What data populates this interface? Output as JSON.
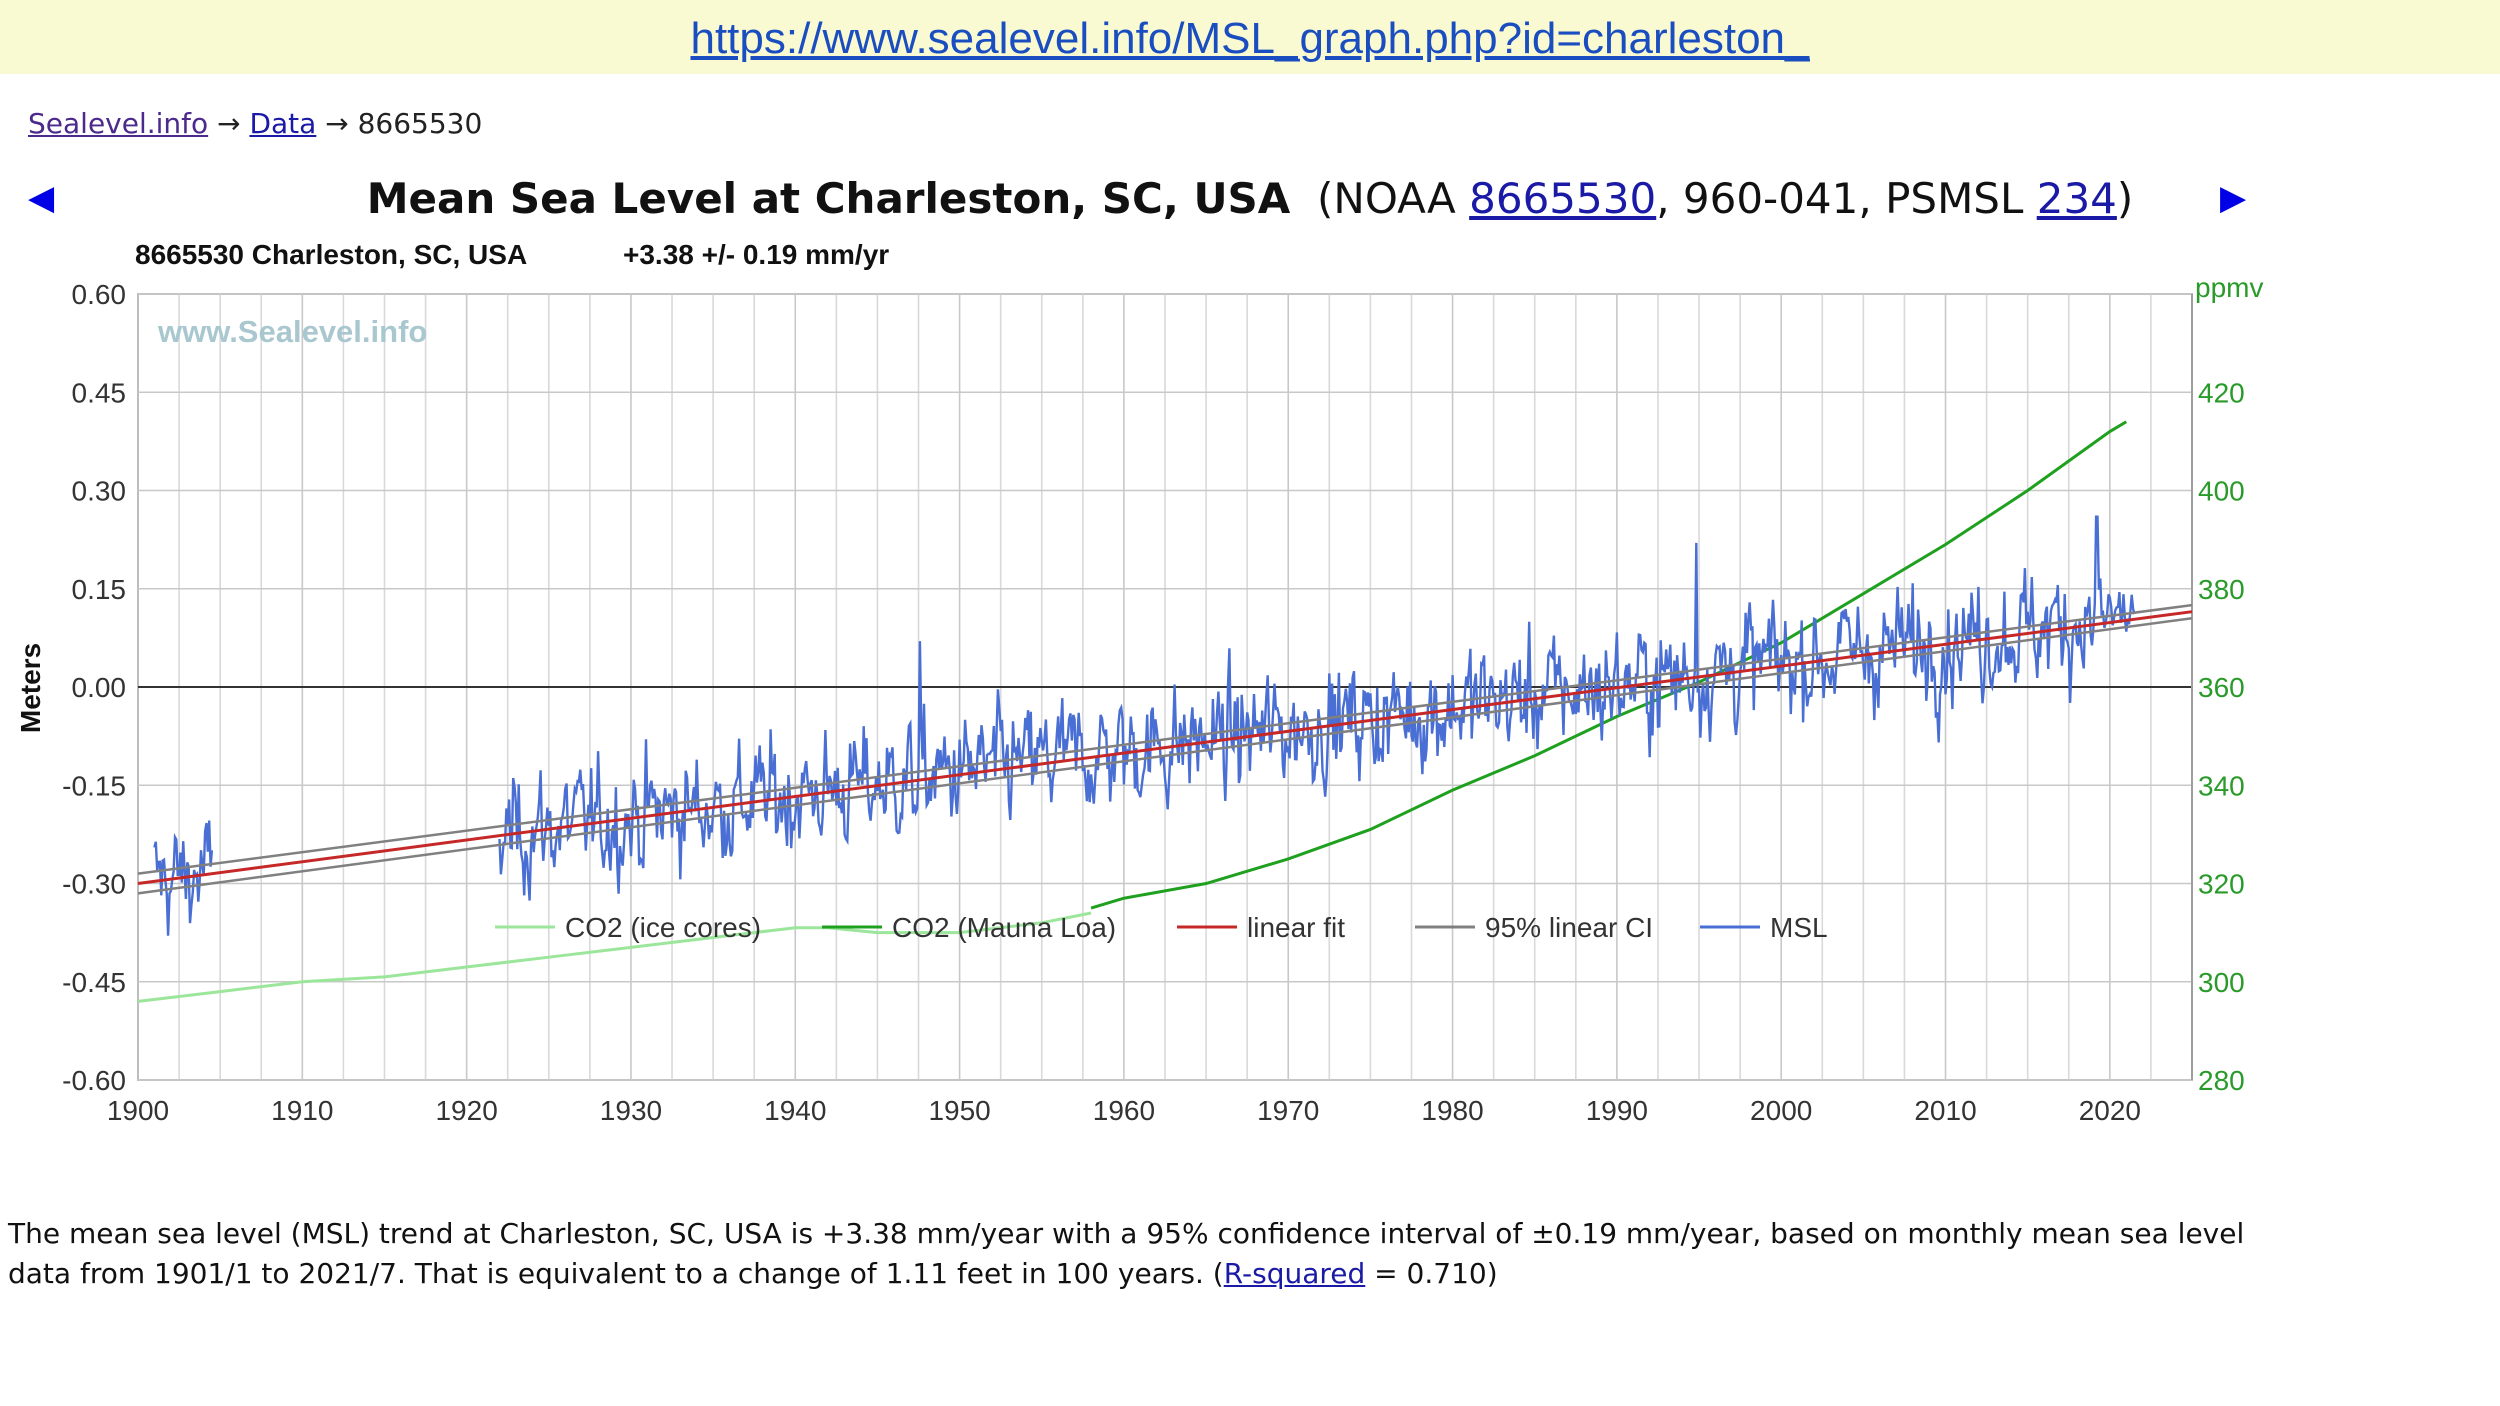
{
  "url_bar": {
    "url": "https://www.sealevel.info/MSL_graph.php?id=charleston_"
  },
  "breadcrumb": {
    "home": "Sealevel.info",
    "sep1": "→",
    "data": "Data",
    "sep2": "→",
    "station": "8665530"
  },
  "nav": {
    "prev_icon": "◀",
    "next_icon": "▶"
  },
  "title": {
    "main": "Mean Sea Level at Charleston, SC, USA",
    "pre": "  (NOAA ",
    "noaa_id": "8665530",
    "mid": ", 960-041, PSMSL ",
    "psmsl_id": "234",
    "post": ")"
  },
  "chart_data": {
    "type": "line",
    "subtitle_station": "8665530 Charleston, SC, USA",
    "subtitle_trend": "+3.38 +/- 0.19 mm/yr",
    "watermark": "www.Sealevel.info",
    "ylabel": "Meters",
    "y2label": "ppmv",
    "xlim": [
      1900,
      2025
    ],
    "ylim": [
      -0.6,
      0.6
    ],
    "y2lim": [
      280,
      440
    ],
    "x_ticks": [
      1900,
      1910,
      1920,
      1930,
      1940,
      1950,
      1960,
      1970,
      1980,
      1990,
      2000,
      2010,
      2020
    ],
    "y_ticks": [
      "0.60",
      "0.45",
      "0.30",
      "0.15",
      "0.00",
      "-0.15",
      "-0.30",
      "-0.45",
      "-0.60"
    ],
    "y2_ticks": [
      "420",
      "400",
      "380",
      "360",
      "340",
      "320",
      "300",
      "280"
    ],
    "grid": true,
    "legend_position": "bottom",
    "colors": {
      "co2_ice": "#9be69b",
      "co2_mlo": "#1fa01f",
      "fit": "#c62828",
      "ci": "#808080",
      "msl": "#4a6fd4",
      "axis2": "#2a9a2a"
    },
    "series": [
      {
        "name": "CO2 (ice cores)",
        "axis": "right",
        "x": [
          1900,
          1905,
          1910,
          1915,
          1920,
          1925,
          1930,
          1935,
          1940,
          1942,
          1945,
          1950,
          1955,
          1958
        ],
        "values": [
          296,
          298,
          300,
          301,
          303,
          305,
          307,
          309,
          311,
          311,
          310,
          310,
          312,
          314
        ]
      },
      {
        "name": "CO2 (Mauna Loa)",
        "axis": "right",
        "x": [
          1958,
          1960,
          1965,
          1970,
          1975,
          1980,
          1985,
          1990,
          1995,
          2000,
          2005,
          2010,
          2015,
          2020,
          2021
        ],
        "values": [
          315,
          317,
          320,
          325,
          331,
          339,
          346,
          354,
          361,
          369,
          379,
          389,
          400,
          412,
          414
        ]
      },
      {
        "name": "linear fit",
        "axis": "left",
        "x": [
          1900,
          2025
        ],
        "values": [
          -0.3,
          0.115
        ]
      },
      {
        "name": "95% linear CI",
        "axis": "left",
        "x": [
          1900,
          2025
        ],
        "upper": [
          -0.285,
          0.125
        ],
        "lower": [
          -0.315,
          0.105
        ]
      },
      {
        "name": "MSL",
        "axis": "left",
        "segments": [
          {
            "start": 1901.0,
            "end": 1904.5
          },
          {
            "start": 1922.0,
            "end": 2021.58
          }
        ],
        "trend_start": -0.3,
        "trend_slope_per_year": 0.00338,
        "monthly_noise_sd": 0.055,
        "note_peaks": [
          {
            "x": 1947.6,
            "y": 0.07
          },
          {
            "x": 1994.8,
            "y": 0.22
          },
          {
            "x": 2019.2,
            "y": 0.26
          }
        ]
      }
    ]
  },
  "description": {
    "text_before": "The mean sea level (MSL) trend at Charleston, SC, USA is +3.38 mm/year with a 95% confidence interval of ±0.19 mm/year, based on monthly mean sea level data from 1901/1 to 2021/7. That is equivalent to a change of 1.11 feet in 100 years. (",
    "link": "R-squared",
    "text_after": " = 0.710)"
  }
}
